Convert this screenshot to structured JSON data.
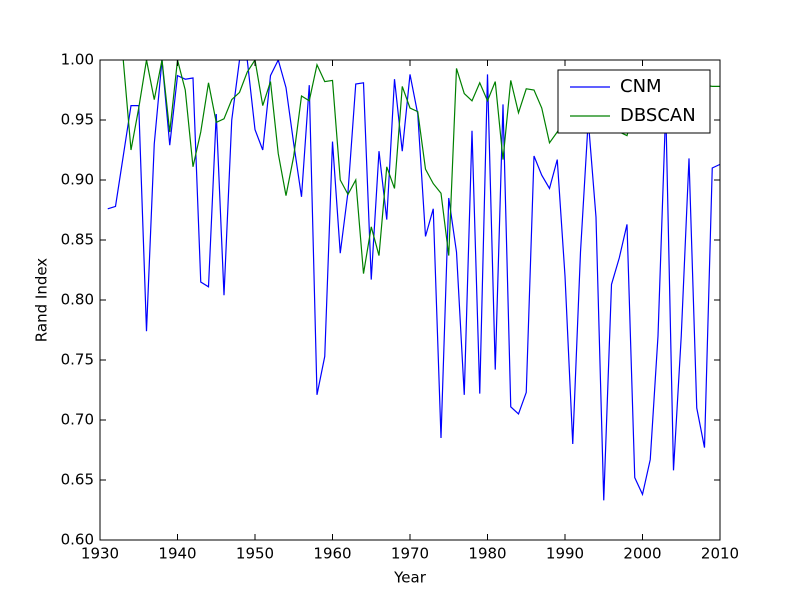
{
  "chart_data": {
    "type": "line",
    "x_label": "Year",
    "y_label": "Rand Index",
    "x": [
      1931,
      1932,
      1933,
      1934,
      1935,
      1936,
      1937,
      1938,
      1939,
      1940,
      1941,
      1942,
      1943,
      1944,
      1945,
      1946,
      1947,
      1948,
      1949,
      1950,
      1951,
      1952,
      1953,
      1954,
      1955,
      1956,
      1957,
      1958,
      1959,
      1960,
      1961,
      1962,
      1963,
      1964,
      1965,
      1966,
      1967,
      1968,
      1969,
      1970,
      1971,
      1972,
      1973,
      1974,
      1975,
      1976,
      1977,
      1978,
      1979,
      1980,
      1981,
      1982,
      1983,
      1984,
      1985,
      1986,
      1987,
      1988,
      1989,
      1990,
      1991,
      1992,
      1993,
      1994,
      1995,
      1996,
      1997,
      1998,
      1999,
      2000,
      2001,
      2002,
      2003,
      2004,
      2005,
      2006,
      2007,
      2008,
      2009,
      2010
    ],
    "series": [
      {
        "name": "CNM",
        "color": "#0000ff",
        "values": [
          0.876,
          0.878,
          0.92,
          0.962,
          0.962,
          0.774,
          0.93,
          1.0,
          0.929,
          0.987,
          0.984,
          0.985,
          0.815,
          0.811,
          0.955,
          0.804,
          0.95,
          1.0,
          1.0,
          0.942,
          0.925,
          0.987,
          1.0,
          0.977,
          0.93,
          0.886,
          0.979,
          0.721,
          0.753,
          0.932,
          0.839,
          0.89,
          0.98,
          0.981,
          0.817,
          0.924,
          0.867,
          0.984,
          0.924,
          0.988,
          0.955,
          0.853,
          0.876,
          0.685,
          0.885,
          0.84,
          0.721,
          0.941,
          0.722,
          0.988,
          0.742,
          0.963,
          0.711,
          0.705,
          0.723,
          0.92,
          0.904,
          0.893,
          0.917,
          0.82,
          0.68,
          0.84,
          0.95,
          0.869,
          0.633,
          0.813,
          0.835,
          0.863,
          0.652,
          0.638,
          0.667,
          0.77,
          0.96,
          0.658,
          0.77,
          0.918,
          0.71,
          0.677,
          0.91,
          0.913
        ]
      },
      {
        "name": "DBSCAN",
        "color": "#008000",
        "values": [
          null,
          null,
          1.0,
          0.925,
          0.96,
          1.0,
          0.967,
          1.0,
          0.94,
          1.0,
          0.975,
          0.911,
          0.94,
          0.981,
          0.948,
          0.951,
          0.967,
          0.973,
          0.99,
          1.0,
          0.962,
          0.982,
          0.922,
          0.887,
          0.92,
          0.97,
          0.966,
          0.996,
          0.982,
          0.983,
          0.9,
          0.888,
          0.9,
          0.822,
          0.861,
          0.837,
          0.911,
          0.893,
          0.978,
          0.96,
          0.957,
          0.909,
          0.897,
          0.889,
          0.837,
          0.993,
          0.972,
          0.966,
          0.981,
          0.966,
          0.982,
          0.917,
          0.983,
          0.956,
          0.976,
          0.975,
          0.96,
          0.931,
          0.94,
          0.95,
          0.96,
          0.965,
          0.97,
          0.96,
          0.955,
          0.96,
          0.94,
          0.937,
          0.96,
          0.97,
          0.965,
          0.97,
          0.975,
          0.97,
          0.965,
          0.97,
          0.975,
          0.979,
          0.978,
          0.978
        ]
      }
    ],
    "xlim": [
      1930,
      2010
    ],
    "xticks": [
      1930,
      1940,
      1950,
      1960,
      1970,
      1980,
      1990,
      2000,
      2010
    ],
    "ylim": [
      0.6,
      1.0
    ],
    "yticks": [
      {
        "value": 0.6,
        "label": "0.60"
      },
      {
        "value": 0.65,
        "label": "0.65"
      },
      {
        "value": 0.7,
        "label": "0.70"
      },
      {
        "value": 0.75,
        "label": "0.75"
      },
      {
        "value": 0.8,
        "label": "0.80"
      },
      {
        "value": 0.85,
        "label": "0.85"
      },
      {
        "value": 0.9,
        "label": "0.90"
      },
      {
        "value": 0.95,
        "label": "0.95"
      },
      {
        "value": 1.0,
        "label": "1.00"
      }
    ],
    "legend": "upper right"
  }
}
